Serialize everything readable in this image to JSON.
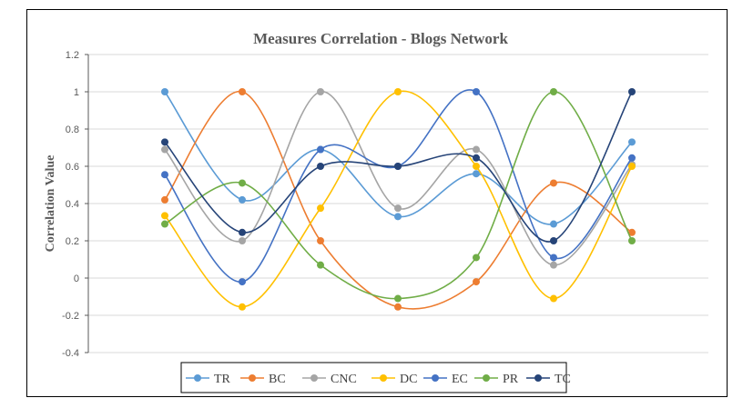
{
  "chart_data": {
    "type": "line",
    "smooth": true,
    "title": "Measures Correlation - Blogs Network",
    "xlabel": "",
    "ylabel": "Correlation Value",
    "ylim": [
      -0.4,
      1.2
    ],
    "yticks": [
      "-0.4",
      "-0.2",
      "0",
      "0.2",
      "0.4",
      "0.6",
      "0.8",
      "1",
      "1.2"
    ],
    "x": [
      1,
      2,
      3,
      4,
      5,
      6,
      7
    ],
    "grid": true,
    "legend_position": "bottom",
    "series": [
      {
        "name": "TR",
        "color": "#5B9BD5",
        "values": [
          1.0,
          0.42,
          0.69,
          0.33,
          0.56,
          0.29,
          0.73
        ]
      },
      {
        "name": "BC",
        "color": "#ED7D31",
        "values": [
          0.42,
          1.0,
          0.2,
          -0.155,
          -0.02,
          0.51,
          0.245
        ]
      },
      {
        "name": "CNC",
        "color": "#A5A5A5",
        "values": [
          0.69,
          0.2,
          1.0,
          0.375,
          0.69,
          0.07,
          0.61
        ]
      },
      {
        "name": "DC",
        "color": "#FFC000",
        "values": [
          0.335,
          -0.155,
          0.375,
          1.0,
          0.6,
          -0.11,
          0.6
        ]
      },
      {
        "name": "EC",
        "color": "#4472C4",
        "values": [
          0.555,
          -0.02,
          0.69,
          0.6,
          1.0,
          0.11,
          0.645
        ]
      },
      {
        "name": "PR",
        "color": "#70AD47",
        "values": [
          0.29,
          0.51,
          0.07,
          -0.11,
          0.11,
          1.0,
          0.2
        ]
      },
      {
        "name": "TC",
        "color": "#264478",
        "values": [
          0.73,
          0.245,
          0.6,
          0.6,
          0.645,
          0.2,
          1.0
        ]
      }
    ]
  }
}
